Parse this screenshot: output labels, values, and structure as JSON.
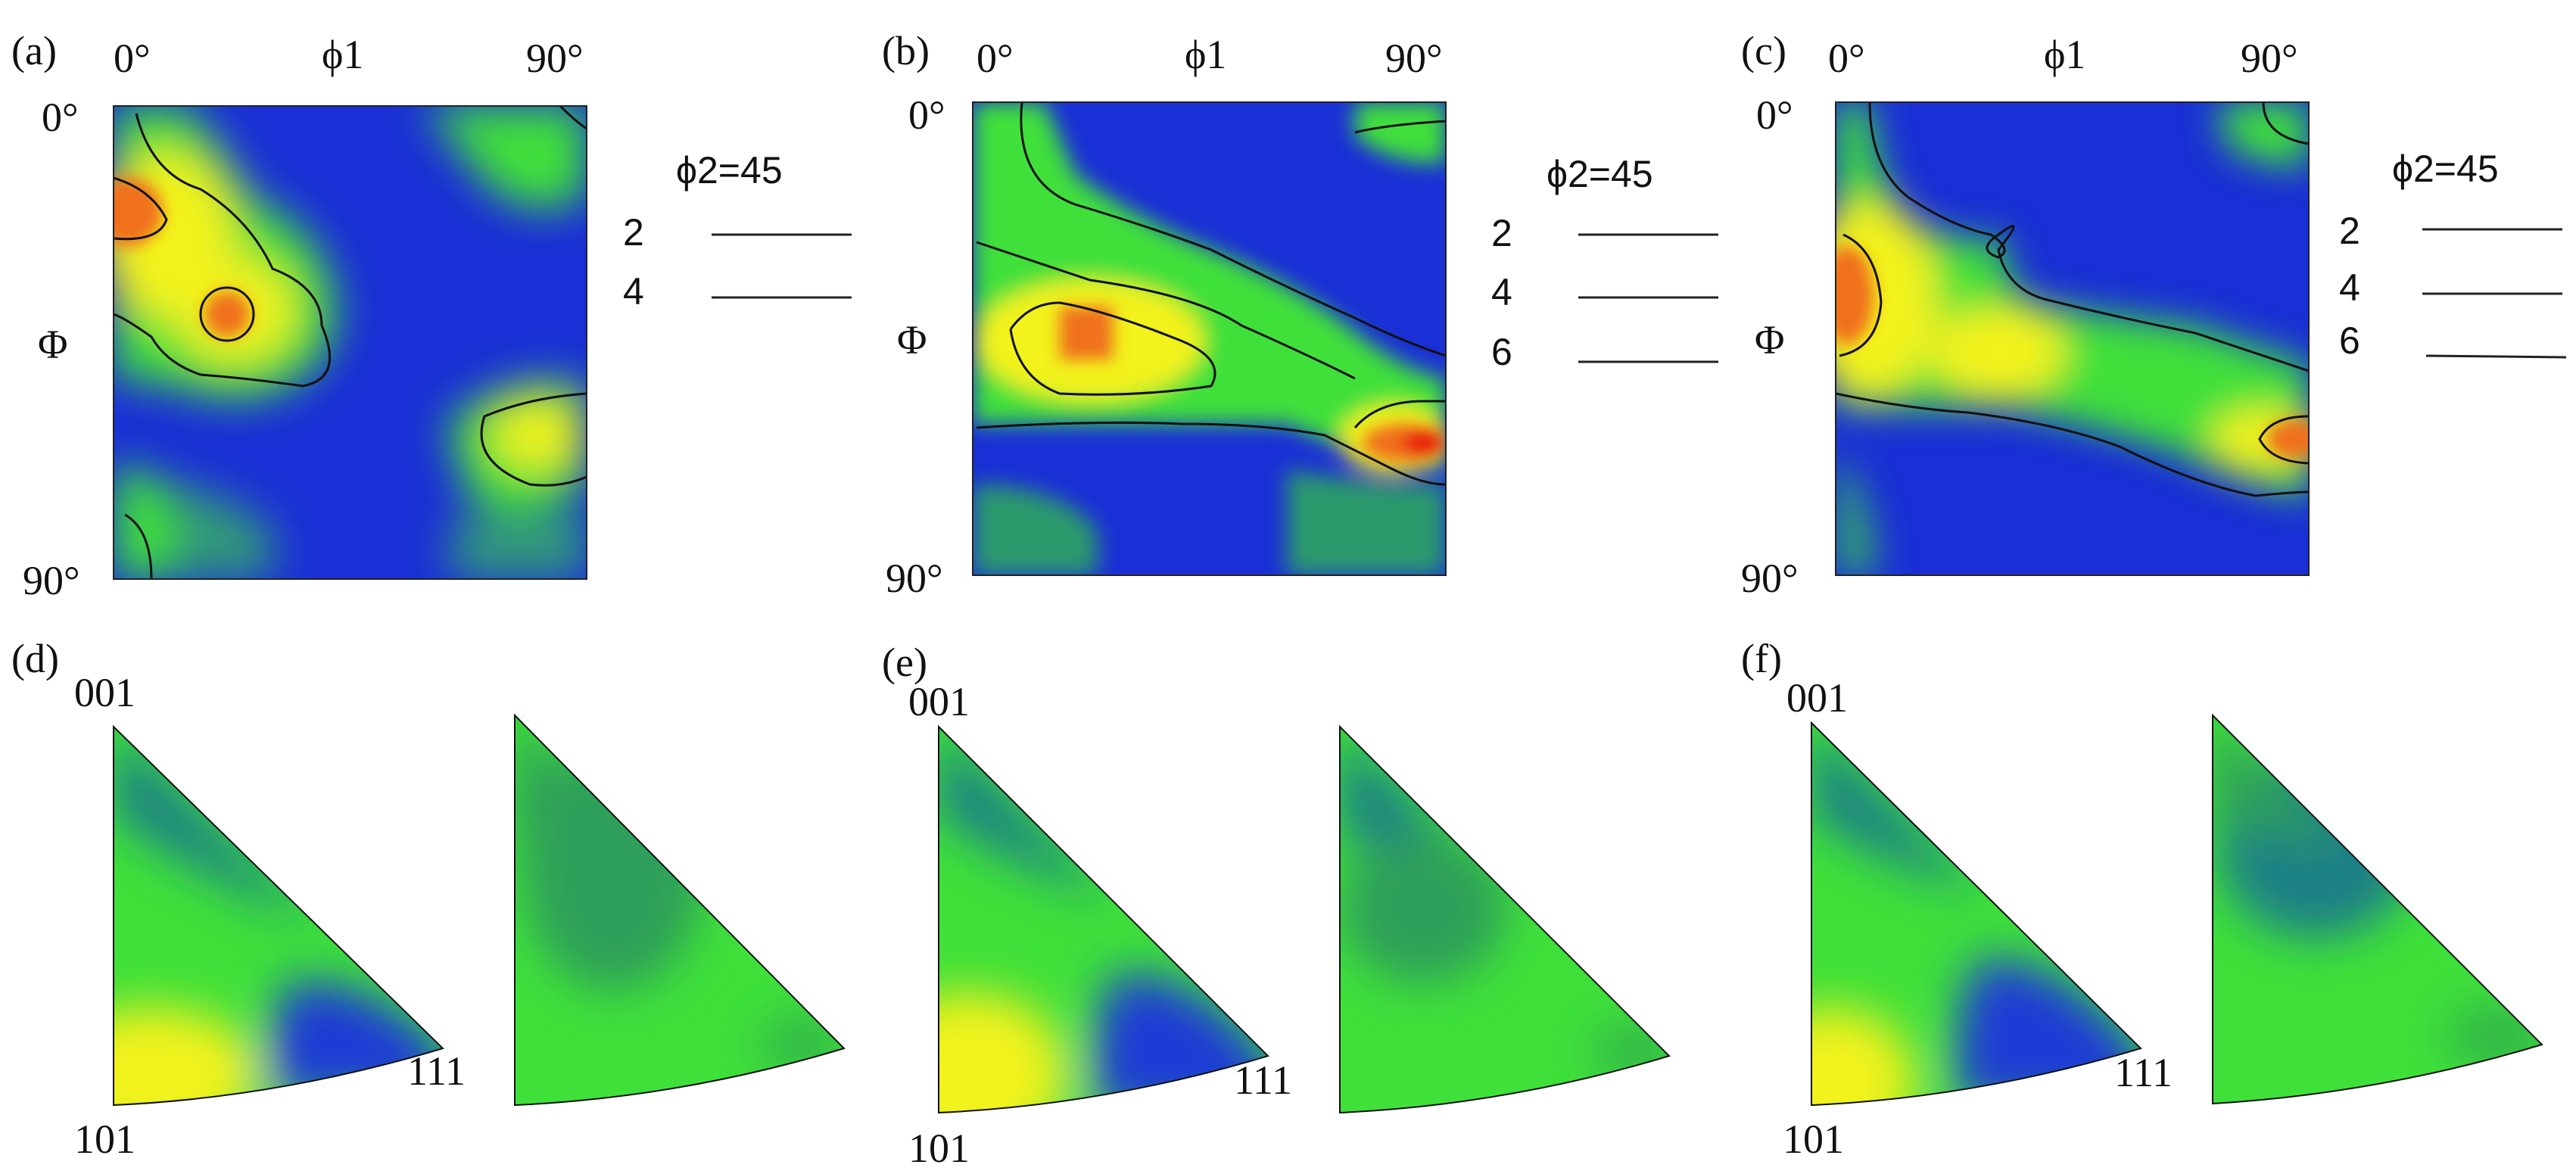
{
  "odf_panels": [
    {
      "panel_label": "(a)",
      "x_start": "0°",
      "x_name": "ϕ1",
      "x_end": "90°",
      "y_start": "0°",
      "y_name": "Φ",
      "y_end": "90°",
      "legend_title": "ϕ2=45",
      "legend_levels": [
        "2",
        "4"
      ]
    },
    {
      "panel_label": "(b)",
      "x_start": "0°",
      "x_name": "ϕ1",
      "x_end": "90°",
      "y_start": "0°",
      "y_name": "Φ",
      "y_end": "90°",
      "legend_title": "ϕ2=45",
      "legend_levels": [
        "2",
        "4",
        "6"
      ]
    },
    {
      "panel_label": "(c)",
      "x_start": "0°",
      "x_name": "ϕ1",
      "x_end": "90°",
      "y_start": "0°",
      "y_name": "Φ",
      "y_end": "90°",
      "legend_title": "ϕ2=45",
      "legend_levels": [
        "2",
        "4",
        "6"
      ]
    }
  ],
  "ipf_panels": [
    {
      "panel_label": "(d)",
      "corner_top": "001",
      "corner_right": "111",
      "corner_bottom": "101"
    },
    {
      "panel_label": "(e)",
      "corner_top": "001",
      "corner_right": "111",
      "corner_bottom": "101"
    },
    {
      "panel_label": "(f)",
      "corner_top": "001",
      "corner_right": "111",
      "corner_bottom": "101"
    }
  ],
  "colors": {
    "low": "#1a2fd6",
    "mid": "#3fe03a",
    "high_yellow": "#f2f21a",
    "high_orange": "#f0701a",
    "peak": "#e81010",
    "teal": "#1f7f86"
  }
}
